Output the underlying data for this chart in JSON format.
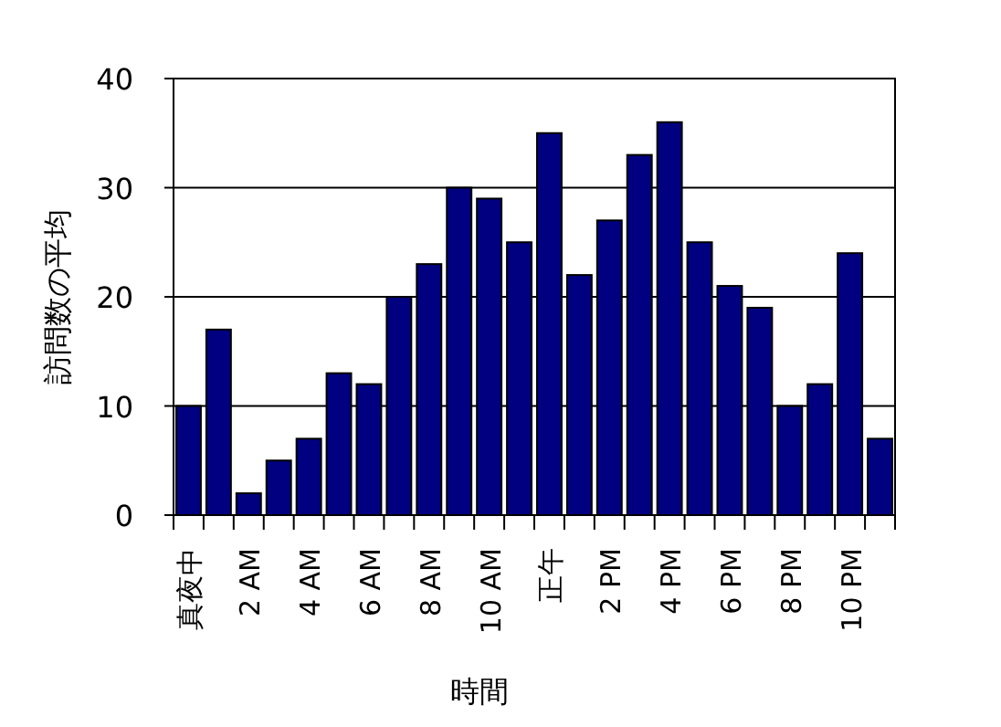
{
  "chart_data": {
    "type": "bar",
    "xlabel": "時間",
    "ylabel": "訪問数の平均",
    "categories": [
      "真夜中",
      null,
      "2 AM",
      null,
      "4 AM",
      null,
      "6 AM",
      null,
      "8 AM",
      null,
      "10 AM",
      null,
      "正午",
      null,
      "2 PM",
      null,
      "4 PM",
      null,
      "6 PM",
      null,
      "8 PM",
      null,
      "10 PM",
      null
    ],
    "values": [
      10,
      17,
      2,
      5,
      7,
      13,
      12,
      20,
      23,
      30,
      29,
      25,
      35,
      22,
      27,
      33,
      36,
      25,
      21,
      19,
      10,
      12,
      24,
      7
    ],
    "color": "#000080",
    "ylim": [
      0,
      40
    ],
    "yticks": [
      0,
      10,
      20,
      30,
      40
    ],
    "grid": "y"
  }
}
